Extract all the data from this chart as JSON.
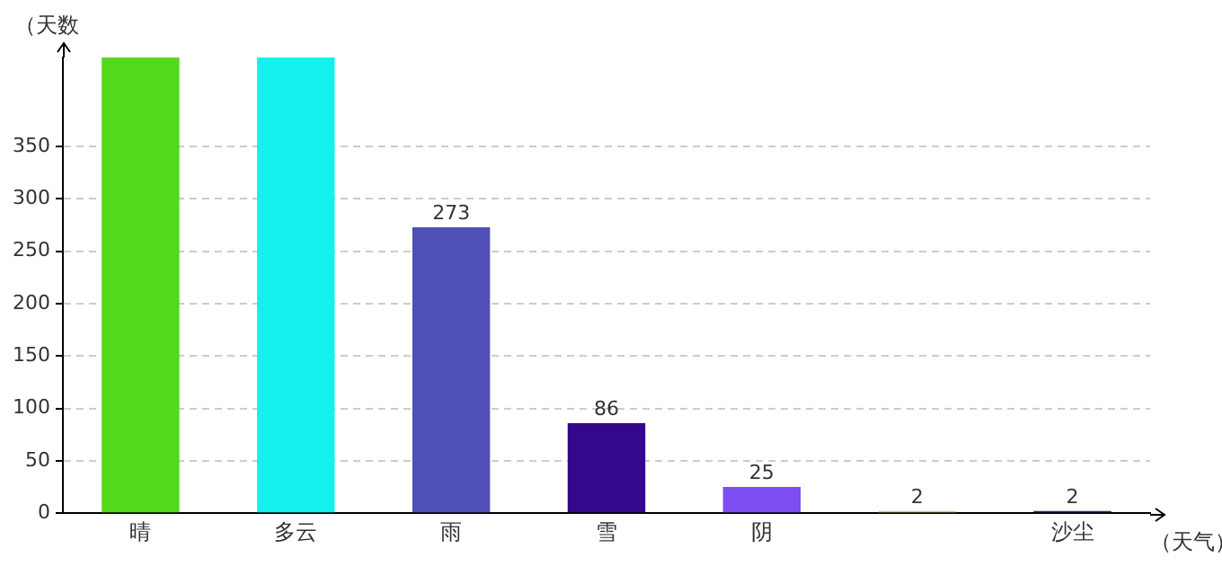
{
  "chart_data": {
    "type": "bar",
    "xlabel": "（天气）",
    "ylabel": "（天数",
    "categories": [
      "晴",
      "多云",
      "雨",
      "雪",
      "阴",
      null,
      "沙尘"
    ],
    "values": [
      435,
      435,
      273,
      86,
      25,
      2,
      2
    ],
    "value_labels": [
      null,
      null,
      "273",
      "86",
      "25",
      "2",
      "2"
    ],
    "colors": [
      "#52d91e",
      "#13f0ee",
      "#4f4fb5",
      "#33088c",
      "#7c4df0",
      "#e8c47a",
      "#4a1a7a"
    ],
    "ylim": [
      0,
      435
    ],
    "yticks": [
      0,
      50,
      100,
      150,
      200,
      250,
      300,
      350
    ],
    "grid": "y",
    "legend": false
  }
}
